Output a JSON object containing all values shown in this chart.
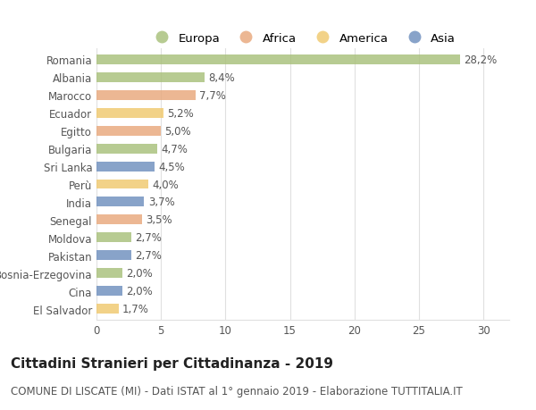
{
  "categories": [
    "Romania",
    "Albania",
    "Marocco",
    "Ecuador",
    "Egitto",
    "Bulgaria",
    "Sri Lanka",
    "Perù",
    "India",
    "Senegal",
    "Moldova",
    "Pakistan",
    "Bosnia-Erzegovina",
    "Cina",
    "El Salvador"
  ],
  "values": [
    28.2,
    8.4,
    7.7,
    5.2,
    5.0,
    4.7,
    4.5,
    4.0,
    3.7,
    3.5,
    2.7,
    2.7,
    2.0,
    2.0,
    1.7
  ],
  "labels": [
    "28,2%",
    "8,4%",
    "7,7%",
    "5,2%",
    "5,0%",
    "4,7%",
    "4,5%",
    "4,0%",
    "3,7%",
    "3,5%",
    "2,7%",
    "2,7%",
    "2,0%",
    "2,0%",
    "1,7%"
  ],
  "continents": [
    "Europa",
    "Europa",
    "Africa",
    "America",
    "Africa",
    "Europa",
    "Asia",
    "America",
    "Asia",
    "Africa",
    "Europa",
    "Asia",
    "Europa",
    "Asia",
    "America"
  ],
  "colors": {
    "Europa": "#a8c07a",
    "Africa": "#e8a87c",
    "America": "#f0c96e",
    "Asia": "#6e8fbe"
  },
  "legend_order": [
    "Europa",
    "Africa",
    "America",
    "Asia"
  ],
  "title": "Cittadini Stranieri per Cittadinanza - 2019",
  "subtitle": "COMUNE DI LISCATE (MI) - Dati ISTAT al 1° gennaio 2019 - Elaborazione TUTTITALIA.IT",
  "xlim": [
    0,
    32
  ],
  "xticks": [
    0,
    5,
    10,
    15,
    20,
    25,
    30
  ],
  "bg_color": "#ffffff",
  "grid_color": "#e0e0e0",
  "bar_height": 0.55,
  "title_fontsize": 11,
  "subtitle_fontsize": 8.5,
  "label_fontsize": 8.5,
  "tick_fontsize": 8.5,
  "legend_fontsize": 9.5
}
